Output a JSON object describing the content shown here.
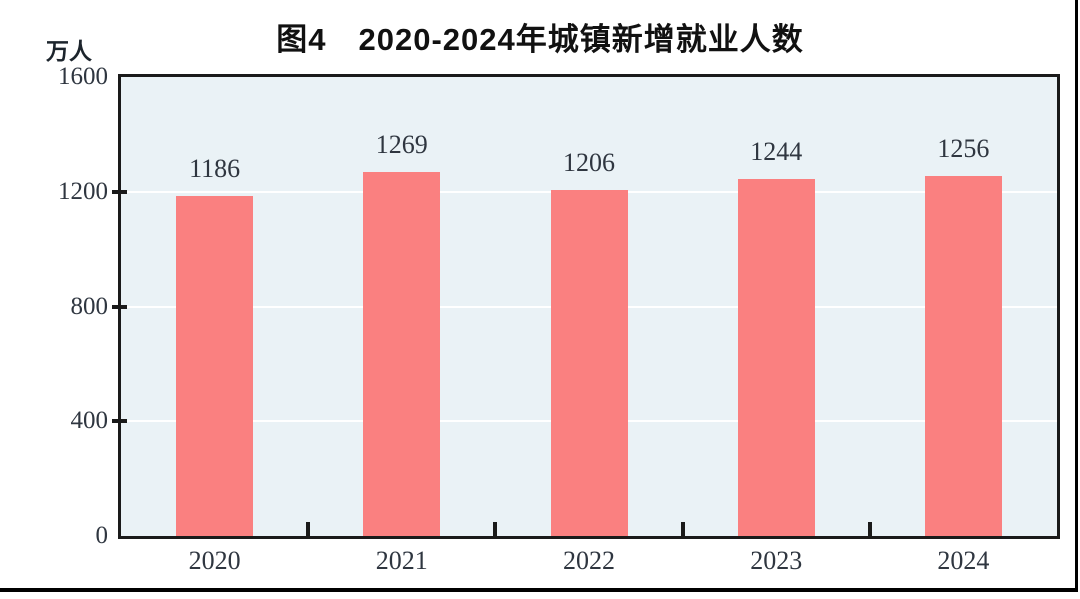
{
  "figure": {
    "title": "图4　2020-2024年城镇新增就业人数",
    "unit_label": "万人"
  },
  "chart_data": {
    "type": "bar",
    "title": "图4　2020-2024年城镇新增就业人数",
    "unit": "万人",
    "categories": [
      "2020",
      "2021",
      "2022",
      "2023",
      "2024"
    ],
    "values": [
      1186,
      1269,
      1206,
      1244,
      1256
    ],
    "xlabel": "",
    "ylabel": "万人",
    "ylim": [
      0,
      1600
    ],
    "yticks": [
      0,
      400,
      800,
      1200,
      1600
    ],
    "grid": "horizontal-white-lines",
    "legend": "none",
    "colors": {
      "bar": "#fa8080",
      "plot_background": "#eaf2f6",
      "gridline": "#ffffff",
      "axis_border": "#1a1a1a",
      "text": "#2f3640",
      "frame_line": "#000000"
    }
  }
}
